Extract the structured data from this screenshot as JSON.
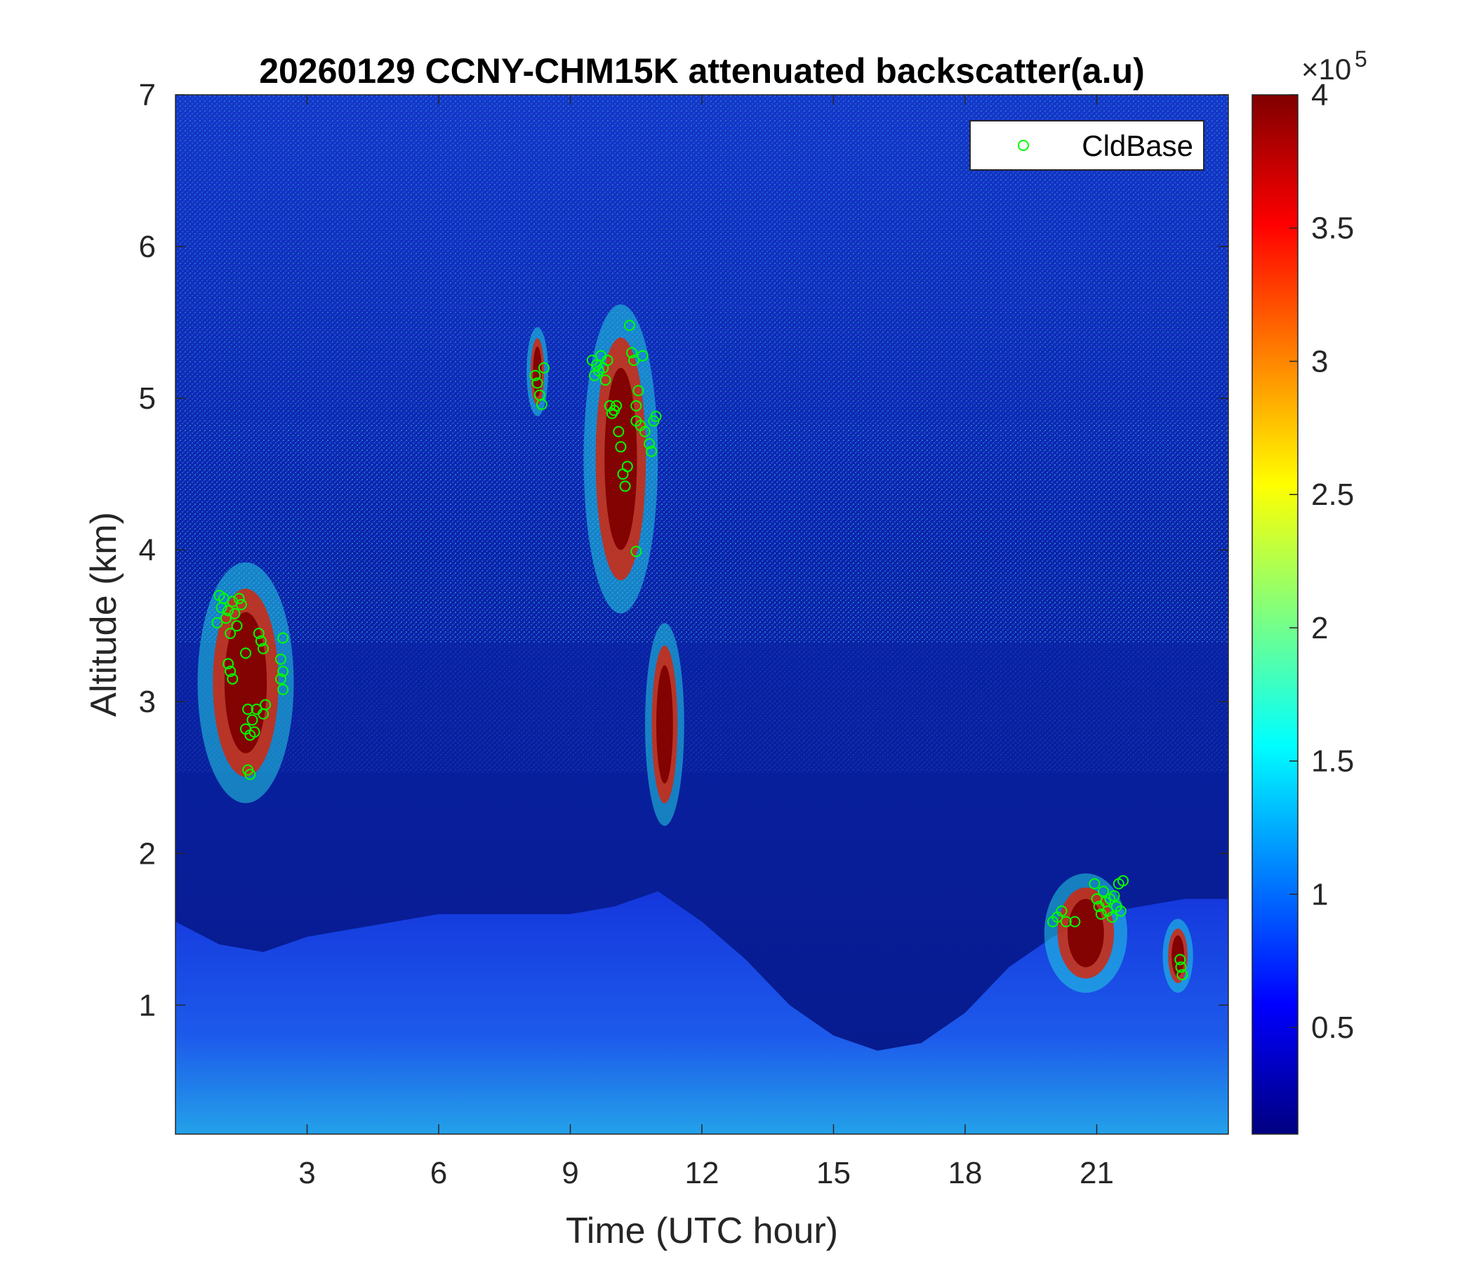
{
  "chart_data": {
    "type": "heatmap",
    "title": "20260129 CCNY-CHM15K attenuated backscatter(a.u)",
    "xlabel": "Time (UTC hour)",
    "ylabel": "Altitude (km)",
    "xlim": [
      0,
      24
    ],
    "ylim": [
      0.15,
      7
    ],
    "xticks": [
      3,
      6,
      9,
      12,
      15,
      18,
      21
    ],
    "xtick_labels": [
      "3",
      "6",
      "9",
      "12",
      "15",
      "18",
      "21"
    ],
    "yticks": [
      1,
      2,
      3,
      4,
      5,
      6,
      7
    ],
    "ytick_labels": [
      "1",
      "2",
      "3",
      "4",
      "5",
      "6",
      "7"
    ],
    "colorbar": {
      "colormap": "jet",
      "range": [
        0.1,
        4.0
      ],
      "ticks": [
        0.5,
        1,
        1.5,
        2,
        2.5,
        3,
        3.5,
        4
      ],
      "tick_labels": [
        "0.5",
        "1",
        "1.5",
        "2",
        "2.5",
        "3",
        "3.5",
        "4"
      ],
      "exponent_prefix": "×10",
      "exponent_value": "5"
    },
    "legend": {
      "placement": "top-right",
      "entries": [
        {
          "name": "CldBase",
          "marker": "circle",
          "color": "#00ff00"
        }
      ]
    },
    "cloud_features": [
      {
        "x_start": 0.6,
        "x_end": 2.6,
        "base_km": 2.35,
        "top_km": 3.9
      },
      {
        "x_start": 8.1,
        "x_end": 8.4,
        "base_km": 4.9,
        "top_km": 5.45
      },
      {
        "x_start": 9.4,
        "x_end": 10.9,
        "base_km": 3.6,
        "top_km": 5.6
      },
      {
        "x_start": 10.8,
        "x_end": 11.5,
        "base_km": 2.2,
        "top_km": 3.5
      },
      {
        "x_start": 19.9,
        "x_end": 21.6,
        "base_km": 1.1,
        "top_km": 1.85
      },
      {
        "x_start": 22.6,
        "x_end": 23.1,
        "base_km": 1.1,
        "top_km": 1.55
      }
    ],
    "boundary_layer_top_km": [
      [
        0,
        1.55
      ],
      [
        1,
        1.4
      ],
      [
        2,
        1.35
      ],
      [
        3,
        1.45
      ],
      [
        4,
        1.5
      ],
      [
        5,
        1.55
      ],
      [
        6,
        1.6
      ],
      [
        7,
        1.6
      ],
      [
        8,
        1.6
      ],
      [
        9,
        1.6
      ],
      [
        10,
        1.65
      ],
      [
        11,
        1.75
      ],
      [
        12,
        1.55
      ],
      [
        13,
        1.3
      ],
      [
        14,
        1.0
      ],
      [
        15,
        0.8
      ],
      [
        16,
        0.7
      ],
      [
        17,
        0.75
      ],
      [
        18,
        0.95
      ],
      [
        19,
        1.25
      ],
      [
        20,
        1.45
      ],
      [
        21,
        1.6
      ],
      [
        22,
        1.65
      ],
      [
        23,
        1.7
      ],
      [
        24,
        1.7
      ]
    ],
    "cloud_base_series": {
      "name": "CldBase",
      "points": [
        [
          0.95,
          3.52
        ],
        [
          1.0,
          3.7
        ],
        [
          1.05,
          3.62
        ],
        [
          1.1,
          3.68
        ],
        [
          1.15,
          3.55
        ],
        [
          1.2,
          3.6
        ],
        [
          1.25,
          3.45
        ],
        [
          1.3,
          3.66
        ],
        [
          1.35,
          3.58
        ],
        [
          1.4,
          3.5
        ],
        [
          1.45,
          3.68
        ],
        [
          1.5,
          3.64
        ],
        [
          1.2,
          3.25
        ],
        [
          1.25,
          3.2
        ],
        [
          1.3,
          3.15
        ],
        [
          1.6,
          3.32
        ],
        [
          1.6,
          2.82
        ],
        [
          1.65,
          2.95
        ],
        [
          1.7,
          2.78
        ],
        [
          1.65,
          2.55
        ],
        [
          1.7,
          2.52
        ],
        [
          1.75,
          2.88
        ],
        [
          1.8,
          2.8
        ],
        [
          1.85,
          2.95
        ],
        [
          1.9,
          3.45
        ],
        [
          1.95,
          3.4
        ],
        [
          2.0,
          2.92
        ],
        [
          2.05,
          2.98
        ],
        [
          2.0,
          3.35
        ],
        [
          2.45,
          3.42
        ],
        [
          2.4,
          3.28
        ],
        [
          2.45,
          3.2
        ],
        [
          2.4,
          3.15
        ],
        [
          2.45,
          3.08
        ],
        [
          8.2,
          5.15
        ],
        [
          8.25,
          5.1
        ],
        [
          8.3,
          5.02
        ],
        [
          8.35,
          4.96
        ],
        [
          8.4,
          5.2
        ],
        [
          9.5,
          5.25
        ],
        [
          9.55,
          5.15
        ],
        [
          9.6,
          5.22
        ],
        [
          9.65,
          5.18
        ],
        [
          9.7,
          5.28
        ],
        [
          9.75,
          5.2
        ],
        [
          9.8,
          5.12
        ],
        [
          9.85,
          5.25
        ],
        [
          9.9,
          4.95
        ],
        [
          9.95,
          4.9
        ],
        [
          10.0,
          4.92
        ],
        [
          10.05,
          4.95
        ],
        [
          10.1,
          4.78
        ],
        [
          10.15,
          4.68
        ],
        [
          10.2,
          4.5
        ],
        [
          10.25,
          4.42
        ],
        [
          10.3,
          4.55
        ],
        [
          10.35,
          5.48
        ],
        [
          10.4,
          5.3
        ],
        [
          10.45,
          5.25
        ],
        [
          10.5,
          4.85
        ],
        [
          10.5,
          4.95
        ],
        [
          10.55,
          5.05
        ],
        [
          10.6,
          4.82
        ],
        [
          10.65,
          5.28
        ],
        [
          10.7,
          4.78
        ],
        [
          10.8,
          4.7
        ],
        [
          10.85,
          4.65
        ],
        [
          10.9,
          4.85
        ],
        [
          10.95,
          4.88
        ],
        [
          10.5,
          3.99
        ],
        [
          20.0,
          1.55
        ],
        [
          20.1,
          1.58
        ],
        [
          20.2,
          1.62
        ],
        [
          20.3,
          1.55
        ],
        [
          20.5,
          1.55
        ],
        [
          20.95,
          1.8
        ],
        [
          21.0,
          1.7
        ],
        [
          21.05,
          1.65
        ],
        [
          21.1,
          1.6
        ],
        [
          21.15,
          1.75
        ],
        [
          21.2,
          1.68
        ],
        [
          21.25,
          1.62
        ],
        [
          21.3,
          1.7
        ],
        [
          21.35,
          1.58
        ],
        [
          21.4,
          1.72
        ],
        [
          21.45,
          1.65
        ],
        [
          21.5,
          1.8
        ],
        [
          21.55,
          1.62
        ],
        [
          21.6,
          1.82
        ],
        [
          22.9,
          1.3
        ],
        [
          22.92,
          1.25
        ],
        [
          22.95,
          1.2
        ]
      ]
    }
  }
}
